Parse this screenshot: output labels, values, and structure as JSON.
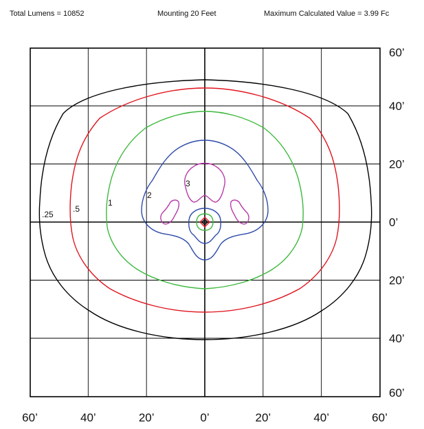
{
  "header": {
    "total_lumens": "Total Lumens = 10852",
    "mounting": "Mounting 20 Feet",
    "max_value": "Maximum Calculated Value = 3.99 Fc"
  },
  "chart_data": {
    "type": "isofootcandle_contour",
    "x_ticks": [
      "60’",
      "40’",
      "20’",
      "0’",
      "20’",
      "40’",
      "60’"
    ],
    "y_ticks": [
      "60’",
      "40’",
      "20’",
      "0’",
      "20’",
      "40’",
      "60’"
    ],
    "x_range_ft": [
      -60,
      60
    ],
    "y_range_ft": [
      -60,
      60
    ],
    "grid": true,
    "contours": [
      {
        "label": ".25",
        "color": "#000000"
      },
      {
        "label": ".5",
        "color": "#e0141e"
      },
      {
        "label": "1",
        "color": "#3cb83c"
      },
      {
        "label": "2",
        "color": "#2c4aa8"
      },
      {
        "label": "3",
        "color": "#b83aa8"
      }
    ]
  }
}
